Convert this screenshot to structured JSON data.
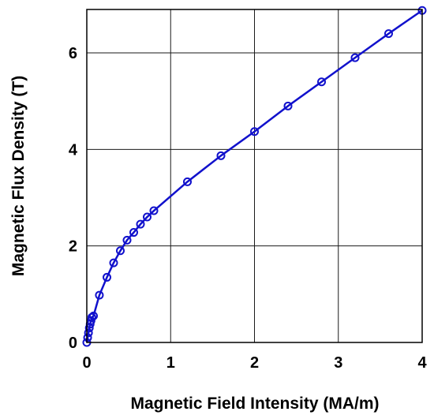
{
  "chart_data": {
    "type": "line",
    "title": "",
    "xlabel": "Magnetic Field Intensity (MA/m)",
    "ylabel": "Magnetic Flux Density (T)",
    "xlim": [
      0,
      4
    ],
    "ylim": [
      0,
      6.9
    ],
    "xticks": [
      "0",
      "1",
      "2",
      "3",
      "4"
    ],
    "yticks": [
      "0",
      "2",
      "4",
      "6"
    ],
    "xtick_values": [
      0,
      1,
      2,
      3,
      4
    ],
    "ytick_values": [
      0,
      2,
      4,
      6
    ],
    "grid": true,
    "marker": "circle",
    "color": "#1111cc",
    "series": [
      {
        "x": [
          0.0,
          0.01,
          0.02,
          0.03,
          0.04,
          0.05,
          0.06,
          0.08,
          0.15,
          0.24,
          0.32,
          0.4,
          0.48,
          0.56,
          0.64,
          0.72,
          0.8,
          1.2,
          1.6,
          2.0,
          2.4,
          2.8,
          3.2,
          3.6,
          4.0
        ],
        "y": [
          0.0,
          0.1,
          0.2,
          0.3,
          0.38,
          0.45,
          0.52,
          0.55,
          0.98,
          1.35,
          1.65,
          1.9,
          2.12,
          2.28,
          2.45,
          2.6,
          2.73,
          3.33,
          3.87,
          4.37,
          4.9,
          5.4,
          5.9,
          6.4,
          6.88
        ]
      }
    ]
  }
}
